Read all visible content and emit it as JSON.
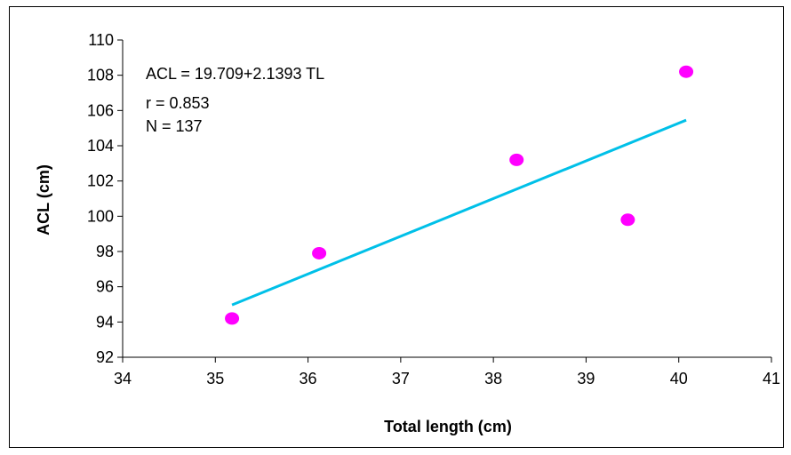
{
  "chart_data": {
    "type": "scatter",
    "title": "",
    "xlabel": "Total length (cm)",
    "ylabel": "ACL (cm)",
    "xlim": [
      34,
      41
    ],
    "ylim": [
      92,
      110
    ],
    "xticks": [
      "34",
      "35",
      "36",
      "37",
      "38",
      "39",
      "40",
      "41"
    ],
    "yticks": [
      "92",
      "94",
      "96",
      "98",
      "100",
      "102",
      "104",
      "106",
      "108",
      "110"
    ],
    "grid": false,
    "legend": "none",
    "points": [
      {
        "x": 35.18,
        "y": 94.2
      },
      {
        "x": 36.12,
        "y": 97.9
      },
      {
        "x": 38.25,
        "y": 103.2
      },
      {
        "x": 39.45,
        "y": 99.8
      },
      {
        "x": 40.08,
        "y": 108.2
      }
    ],
    "trendline": {
      "intercept": 19.709,
      "slope": 2.1393,
      "x_range": [
        35.18,
        40.08
      ]
    },
    "annotations": [
      "ACL = 19.709+2.1393 TL",
      "r = 0.853",
      "N = 137"
    ],
    "colors": {
      "points": "#ff00ff",
      "trendline": "#00c0e8",
      "axes": "#000000"
    }
  }
}
